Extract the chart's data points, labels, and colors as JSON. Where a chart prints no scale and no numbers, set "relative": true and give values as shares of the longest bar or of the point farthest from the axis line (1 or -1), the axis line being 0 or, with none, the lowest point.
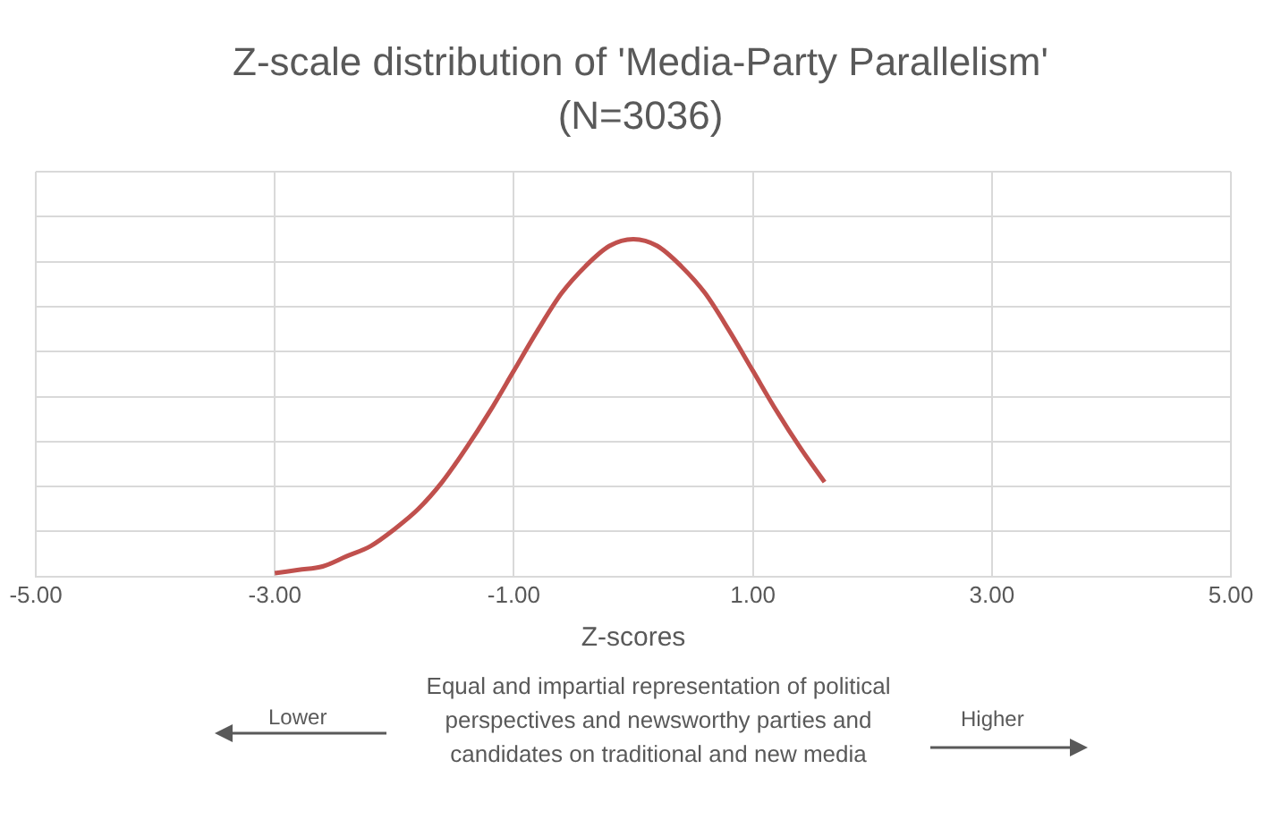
{
  "chart_data": {
    "type": "line",
    "title": "Z-scale distribution of 'Media-Party Parallelism'",
    "subtitle": "(N=3036)",
    "xlabel": "Z-scores",
    "x": [
      -3.0,
      -2.8,
      -2.6,
      -2.4,
      -2.2,
      -2.0,
      -1.8,
      -1.6,
      -1.4,
      -1.2,
      -1.0,
      -0.8,
      -0.6,
      -0.4,
      -0.2,
      0.0,
      0.2,
      0.4,
      0.6,
      0.8,
      1.0,
      1.2,
      1.4,
      1.6
    ],
    "series": [
      {
        "color": "#c0504d",
        "values": [
          0.01,
          0.02,
          0.03,
          0.06,
          0.09,
          0.14,
          0.2,
          0.28,
          0.38,
          0.49,
          0.61,
          0.73,
          0.84,
          0.92,
          0.98,
          1.0,
          0.98,
          0.92,
          0.84,
          0.73,
          0.61,
          0.49,
          0.38,
          0.28
        ]
      }
    ],
    "relative": true,
    "xlim": [
      -5,
      5
    ],
    "xticks": [
      {
        "value": -5,
        "label": "-5.00"
      },
      {
        "value": -3,
        "label": "-3.00"
      },
      {
        "value": -1,
        "label": "-1.00"
      },
      {
        "value": 1,
        "label": "1.00"
      },
      {
        "value": 3,
        "label": "3.00"
      },
      {
        "value": 5,
        "label": "5.00"
      }
    ],
    "grid": true,
    "marker": "none",
    "line_style": "solid",
    "legend": false,
    "annotations": [
      "Lower",
      "Equal and impartial representation of political perspectives and newsworthy parties and candidates on traditional and new media",
      "Higher"
    ]
  }
}
